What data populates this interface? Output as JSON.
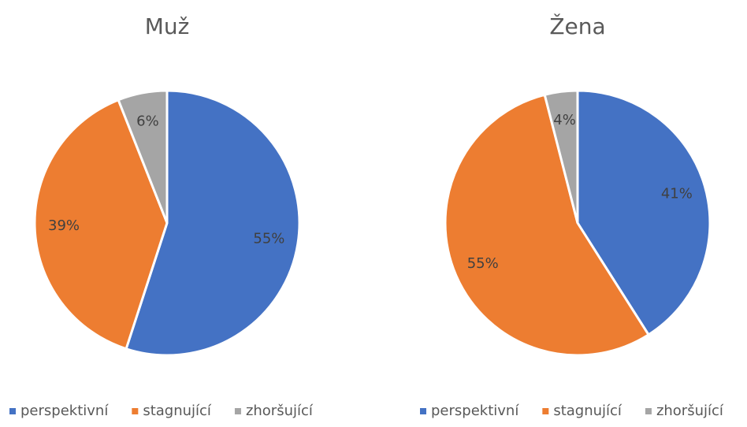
{
  "chart_data": [
    {
      "type": "pie",
      "title": "Muž",
      "categories": [
        "perspektivní",
        "stagnující",
        "zhoršující"
      ],
      "values": [
        55,
        39,
        6
      ],
      "value_labels": [
        "55%",
        "39%",
        "6%"
      ],
      "colors": [
        "#4472c4",
        "#ed7d31",
        "#a5a5a5"
      ],
      "legend": "bottom"
    },
    {
      "type": "pie",
      "title": "Žena",
      "categories": [
        "perspektivní",
        "stagnující",
        "zhoršující"
      ],
      "values": [
        41,
        55,
        4
      ],
      "value_labels": [
        "41%",
        "55%",
        "4%"
      ],
      "colors": [
        "#4472c4",
        "#ed7d31",
        "#a5a5a5"
      ],
      "legend": "bottom"
    }
  ]
}
